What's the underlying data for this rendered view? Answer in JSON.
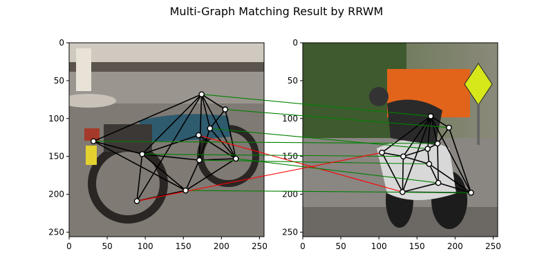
{
  "chart_data": {
    "type": "scatter",
    "title": "Multi-Graph Matching Result by RRWM",
    "grid": false,
    "panels": [
      {
        "name": "left",
        "image": "motorbike parked on a street with parked cars and pedestrians behind",
        "xlim": [
          0,
          256
        ],
        "ylim": [
          256,
          0
        ],
        "xticks": [
          0,
          50,
          100,
          150,
          200,
          250
        ],
        "yticks": [
          0,
          50,
          100,
          150,
          200,
          250
        ],
        "keypoints": [
          {
            "x": 174,
            "y": 68
          },
          {
            "x": 205,
            "y": 88
          },
          {
            "x": 32,
            "y": 130
          },
          {
            "x": 185,
            "y": 113
          },
          {
            "x": 170,
            "y": 122
          },
          {
            "x": 96,
            "y": 147
          },
          {
            "x": 171,
            "y": 155
          },
          {
            "x": 219,
            "y": 153
          },
          {
            "x": 153,
            "y": 195
          },
          {
            "x": 89,
            "y": 209
          }
        ],
        "edges": [
          [
            0,
            1
          ],
          [
            0,
            2
          ],
          [
            0,
            3
          ],
          [
            0,
            5
          ],
          [
            0,
            6
          ],
          [
            0,
            7
          ],
          [
            0,
            9
          ],
          [
            1,
            3
          ],
          [
            1,
            7
          ],
          [
            2,
            5
          ],
          [
            2,
            8
          ],
          [
            3,
            6
          ],
          [
            3,
            7
          ],
          [
            4,
            5
          ],
          [
            4,
            7
          ],
          [
            5,
            6
          ],
          [
            5,
            8
          ],
          [
            5,
            9
          ],
          [
            6,
            7
          ],
          [
            6,
            8
          ],
          [
            7,
            8
          ],
          [
            8,
            9
          ]
        ]
      },
      {
        "name": "right",
        "image": "racing motorbike leaning into a turn with spectators and a yellow road sign behind",
        "xlim": [
          0,
          256
        ],
        "ylim": [
          256,
          0
        ],
        "xticks": [
          0,
          50,
          100,
          150,
          200,
          250
        ],
        "yticks": [
          0,
          50,
          100,
          150,
          200,
          250
        ],
        "keypoints": [
          {
            "x": 168,
            "y": 97
          },
          {
            "x": 192,
            "y": 112
          },
          {
            "x": 104,
            "y": 145
          },
          {
            "x": 177,
            "y": 133
          },
          {
            "x": 164,
            "y": 140
          },
          {
            "x": 132,
            "y": 150
          },
          {
            "x": 166,
            "y": 160
          },
          {
            "x": 178,
            "y": 185
          },
          {
            "x": 131,
            "y": 197
          },
          {
            "x": 221,
            "y": 198
          }
        ],
        "edges": [
          [
            0,
            1
          ],
          [
            0,
            2
          ],
          [
            0,
            3
          ],
          [
            0,
            4
          ],
          [
            0,
            5
          ],
          [
            0,
            8
          ],
          [
            0,
            9
          ],
          [
            1,
            3
          ],
          [
            1,
            9
          ],
          [
            2,
            5
          ],
          [
            2,
            8
          ],
          [
            3,
            4
          ],
          [
            3,
            7
          ],
          [
            4,
            5
          ],
          [
            4,
            6
          ],
          [
            5,
            6
          ],
          [
            5,
            8
          ],
          [
            6,
            7
          ],
          [
            6,
            9
          ],
          [
            7,
            8
          ],
          [
            7,
            9
          ],
          [
            8,
            9
          ]
        ]
      }
    ],
    "matches": [
      {
        "left": 0,
        "right": 0,
        "correct": true
      },
      {
        "left": 1,
        "right": 1,
        "correct": true
      },
      {
        "left": 2,
        "right": 3,
        "correct": true
      },
      {
        "left": 3,
        "right": 4,
        "correct": true
      },
      {
        "left": 4,
        "right": 8,
        "correct": false
      },
      {
        "left": 5,
        "right": 5,
        "correct": true
      },
      {
        "left": 6,
        "right": 6,
        "correct": true
      },
      {
        "left": 7,
        "right": 7,
        "correct": true
      },
      {
        "left": 8,
        "right": 9,
        "correct": true
      },
      {
        "left": 9,
        "right": 2,
        "correct": false
      }
    ],
    "colors": {
      "correct_match": "#008000",
      "wrong_match": "#ff0000",
      "edge": "#000000",
      "node_fill": "#ffffff",
      "node_stroke": "#000000"
    }
  }
}
